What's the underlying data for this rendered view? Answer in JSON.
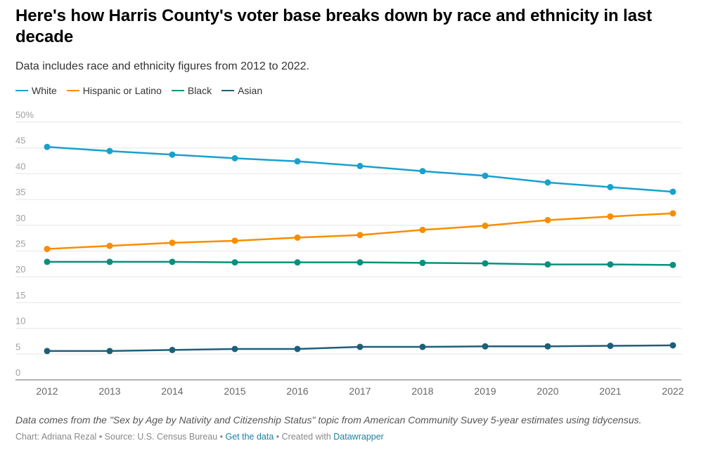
{
  "header": {
    "title": "Here's how Harris County's voter base breaks down by race and ethnicity in last decade",
    "subtitle": "Data includes race and ethnicity figures from 2012 to 2022."
  },
  "footer": {
    "notes": "Data comes from the \"Sex by Age by Nativity and Citizenship Status\" topic from American Community Suvey 5-year estimates using tidycensus.",
    "chart_by": "Chart: Adriana Rezal",
    "sep1": " • ",
    "source": "Source: U.S. Census Bureau",
    "sep2": " • ",
    "get_data": "Get the data",
    "sep3": " • Created with ",
    "created_with": "Datawrapper"
  },
  "chart_data": {
    "type": "line",
    "title": "Here's how Harris County's voter base breaks down by race and ethnicity in last decade",
    "subtitle": "Data includes race and ethnicity figures from 2012 to 2022.",
    "xlabel": "",
    "ylabel": "",
    "x": [
      "2012",
      "2013",
      "2014",
      "2015",
      "2016",
      "2017",
      "2018",
      "2019",
      "2020",
      "2021",
      "2022"
    ],
    "ylim": [
      0,
      50
    ],
    "yticks": [
      0,
      5,
      10,
      15,
      20,
      25,
      30,
      35,
      40,
      45,
      50
    ],
    "ytick_labels": [
      "0",
      "5",
      "10",
      "15",
      "20",
      "25",
      "30",
      "35",
      "40",
      "45",
      "50%"
    ],
    "grid": true,
    "legend_position": "top-left",
    "series": [
      {
        "name": "White",
        "color": "#18a1cd",
        "values": [
          45.2,
          44.4,
          43.7,
          43.0,
          42.4,
          41.5,
          40.5,
          39.6,
          38.3,
          37.4,
          36.5
        ]
      },
      {
        "name": "Hispanic or Latino",
        "color": "#fa8c00",
        "values": [
          25.4,
          26.0,
          26.6,
          27.0,
          27.6,
          28.1,
          29.1,
          29.9,
          31.0,
          31.7,
          32.3
        ]
      },
      {
        "name": "Black",
        "color": "#09907d",
        "values": [
          22.9,
          22.9,
          22.9,
          22.8,
          22.8,
          22.8,
          22.7,
          22.6,
          22.4,
          22.4,
          22.3
        ]
      },
      {
        "name": "Asian",
        "color": "#1d5f7a",
        "values": [
          5.6,
          5.6,
          5.8,
          6.0,
          6.0,
          6.4,
          6.4,
          6.5,
          6.5,
          6.6,
          6.7
        ]
      }
    ]
  }
}
